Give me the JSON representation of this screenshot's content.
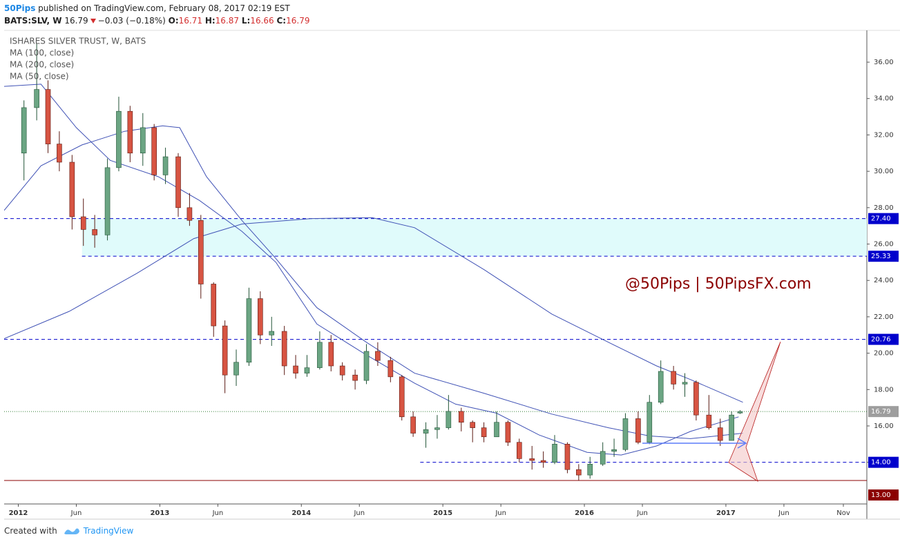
{
  "header": {
    "author": "50Pips",
    "published": "published on TradingView.com, February 08, 2017 02:19 EST",
    "symbol": "BATS:SLV, W",
    "last": "16.79",
    "change": "−0.03 (−0.18%)",
    "open_label": "O:",
    "open": "16.71",
    "high_label": "H:",
    "high": "16.87",
    "low_label": "L:",
    "low": "16.66",
    "close_label": "C:",
    "close": "16.79"
  },
  "chart_data": {
    "type": "candlestick",
    "title": "ISHARES SILVER TRUST, W, BATS",
    "up_color": "#6ba583",
    "down_color": "#d75442",
    "x": [
      2012.04,
      2012.13,
      2012.21,
      2012.29,
      2012.38,
      2012.46,
      2012.54,
      2012.63,
      2012.71,
      2012.79,
      2012.88,
      2012.96,
      2013.04,
      2013.13,
      2013.21,
      2013.29,
      2013.38,
      2013.46,
      2013.54,
      2013.63,
      2013.71,
      2013.79,
      2013.88,
      2013.96,
      2014.04,
      2014.13,
      2014.21,
      2014.29,
      2014.38,
      2014.46,
      2014.54,
      2014.63,
      2014.71,
      2014.79,
      2014.88,
      2014.96,
      2015.04,
      2015.13,
      2015.21,
      2015.29,
      2015.38,
      2015.46,
      2015.54,
      2015.63,
      2015.71,
      2015.79,
      2015.88,
      2015.96,
      2016.04,
      2016.13,
      2016.21,
      2016.29,
      2016.38,
      2016.46,
      2016.54,
      2016.63,
      2016.71,
      2016.79,
      2016.88,
      2016.96,
      2017.04,
      2017.1
    ],
    "open": [
      31.0,
      33.5,
      34.5,
      31.5,
      30.5,
      27.5,
      26.8,
      26.5,
      30.2,
      33.3,
      31.0,
      32.4,
      29.8,
      30.8,
      28.0,
      27.3,
      23.8,
      21.5,
      18.8,
      19.5,
      23.0,
      21.0,
      21.2,
      19.3,
      18.9,
      19.2,
      20.6,
      19.3,
      18.8,
      18.5,
      20.1,
      19.6,
      18.7,
      16.5,
      15.6,
      15.8,
      15.9,
      16.8,
      16.2,
      15.9,
      15.4,
      16.2,
      15.1,
      14.2,
      14.1,
      14.0,
      15.0,
      13.6,
      13.3,
      13.9,
      14.6,
      14.7,
      16.4,
      15.1,
      17.3,
      19.0,
      18.3,
      18.4,
      16.6,
      15.9,
      15.2,
      16.71
    ],
    "high": [
      33.9,
      37.0,
      35.0,
      32.2,
      30.9,
      28.5,
      27.6,
      30.7,
      34.1,
      33.6,
      33.2,
      32.6,
      31.3,
      31.0,
      28.8,
      27.6,
      23.9,
      21.8,
      20.2,
      23.6,
      23.4,
      22.0,
      21.5,
      19.9,
      19.9,
      21.2,
      21.0,
      19.5,
      19.1,
      20.5,
      20.6,
      19.8,
      18.8,
      16.8,
      16.2,
      16.6,
      17.7,
      17.0,
      16.3,
      16.2,
      16.8,
      16.3,
      15.3,
      14.9,
      14.6,
      15.5,
      15.1,
      13.9,
      14.3,
      15.1,
      15.3,
      16.7,
      16.8,
      17.7,
      19.6,
      19.3,
      18.9,
      18.5,
      17.7,
      16.4,
      16.8,
      16.87
    ],
    "low": [
      29.5,
      32.8,
      31.0,
      30.0,
      26.8,
      25.9,
      25.8,
      26.2,
      30.0,
      30.5,
      30.3,
      29.5,
      29.3,
      27.5,
      27.0,
      23.0,
      20.9,
      17.8,
      18.2,
      19.3,
      20.5,
      20.4,
      18.8,
      18.6,
      18.7,
      19.1,
      19.0,
      18.5,
      18.0,
      18.3,
      19.3,
      18.4,
      16.3,
      15.4,
      14.8,
      15.3,
      15.8,
      15.7,
      15.1,
      15.1,
      15.4,
      14.9,
      14.0,
      13.6,
      13.7,
      13.9,
      13.4,
      13.0,
      13.1,
      13.8,
      14.3,
      14.6,
      15.0,
      15.0,
      17.2,
      18.0,
      17.6,
      16.3,
      15.8,
      14.9,
      15.2,
      16.66
    ],
    "close": [
      33.5,
      34.5,
      31.5,
      30.5,
      27.5,
      26.8,
      26.5,
      30.2,
      33.3,
      31.0,
      32.4,
      29.8,
      30.8,
      28.0,
      27.3,
      23.8,
      21.5,
      18.8,
      19.5,
      23.0,
      21.0,
      21.2,
      19.3,
      18.9,
      19.2,
      20.6,
      19.3,
      18.8,
      18.5,
      20.1,
      19.6,
      18.7,
      16.5,
      15.6,
      15.8,
      15.9,
      16.8,
      16.2,
      15.9,
      15.4,
      16.2,
      15.1,
      14.2,
      14.1,
      14.0,
      15.0,
      13.6,
      13.3,
      13.9,
      14.6,
      14.7,
      16.4,
      15.1,
      17.3,
      19.0,
      18.3,
      18.4,
      16.6,
      15.9,
      15.2,
      16.6,
      16.79
    ],
    "series": [
      {
        "name": "MA (100, close)",
        "color": "#3f51b5",
        "x": [
          2011.9,
          2012.16,
          2012.45,
          2012.75,
          2013.02,
          2013.14,
          2013.33,
          2013.58,
          2013.82,
          2014.11,
          2014.46,
          2014.8,
          2015.29,
          2015.77,
          2016.17,
          2016.46,
          2016.75,
          2017.12
        ],
        "values": [
          27.85,
          30.3,
          31.45,
          32.2,
          32.5,
          32.4,
          29.7,
          27.3,
          25.2,
          22.5,
          20.6,
          18.9,
          17.8,
          16.65,
          15.9,
          15.45,
          15.3,
          15.6
        ]
      },
      {
        "name": "MA (200, close)",
        "color": "#3f51b5",
        "x": [
          2011.9,
          2012.36,
          2012.84,
          2013.24,
          2013.58,
          2014.07,
          2014.5,
          2014.8,
          2015.29,
          2015.77,
          2016.17,
          2016.51,
          2016.75,
          2017.12
        ],
        "values": [
          20.8,
          22.3,
          24.4,
          26.3,
          27.1,
          27.4,
          27.45,
          26.9,
          24.6,
          22.15,
          20.6,
          19.3,
          18.55,
          17.3
        ]
      },
      {
        "name": "MA (50, close)",
        "color": "#3f51b5",
        "x": [
          2011.9,
          2012.16,
          2012.41,
          2012.65,
          2012.99,
          2013.28,
          2013.58,
          2013.82,
          2014.11,
          2014.46,
          2014.8,
          2015.09,
          2015.38,
          2015.68,
          2016.02,
          2016.26,
          2016.51,
          2016.75,
          2017.09
        ],
        "values": [
          34.67,
          34.79,
          32.4,
          30.6,
          29.7,
          28.4,
          26.7,
          25.0,
          21.6,
          19.9,
          18.35,
          17.2,
          16.7,
          15.5,
          14.55,
          14.4,
          14.9,
          15.7,
          16.5
        ]
      }
    ],
    "levels": [
      {
        "value": 27.4,
        "label": "27.40",
        "color": "#0000cc",
        "start": 2011.9
      },
      {
        "value": 25.33,
        "label": "25.33",
        "color": "#0000cc",
        "start": 2012.45
      },
      {
        "value": 20.76,
        "label": "20.76",
        "color": "#0000cc",
        "start": 2011.9
      },
      {
        "value": 16.79,
        "label": "16.79",
        "color": "#2e7d32",
        "start": 2011.9
      },
      {
        "value": 14,
        "label": "14.00",
        "color": "#0000cc",
        "start": 2014.84
      },
      {
        "value": 13,
        "label": "13.00",
        "color": "#8b0000",
        "start": 2011.9
      }
    ],
    "zone_color": "#e0fbfb",
    "annotation": "@50Pips | 50PipsFX.com",
    "xlim": [
      2011.9,
      2017.996
    ],
    "ylim": [
      11.71,
      37.52
    ],
    "yticks": [
      {
        "value": 14,
        "label": "14.00"
      },
      {
        "value": 16,
        "label": "16.00"
      },
      {
        "value": 18,
        "label": "18.00"
      },
      {
        "value": 20,
        "label": "20.00"
      },
      {
        "value": 22,
        "label": "22.00"
      },
      {
        "value": 24,
        "label": "24.00"
      },
      {
        "value": 26,
        "label": "26.00"
      },
      {
        "value": 28,
        "label": "28.00"
      },
      {
        "value": 30,
        "label": "30.00"
      },
      {
        "value": 32,
        "label": "32.00"
      },
      {
        "value": 34,
        "label": "34.00"
      },
      {
        "value": 36,
        "label": "36.00"
      }
    ],
    "xticks": [
      2012,
      {
        "value": 2012.41,
        "label": "Jun"
      },
      2013,
      {
        "value": 2013.41,
        "label": "Jun"
      },
      2014,
      {
        "value": 2014.41,
        "label": "Jun"
      },
      2015,
      {
        "value": 2015.41,
        "label": "Jun"
      },
      2016,
      {
        "value": 2016.41,
        "label": "Jun"
      },
      2017,
      {
        "value": 2017.41,
        "label": "Jun"
      },
      {
        "value": 2017.83,
        "label": "Nov"
      }
    ]
  },
  "footer": {
    "created": "Created with",
    "brand": "TradingView"
  }
}
